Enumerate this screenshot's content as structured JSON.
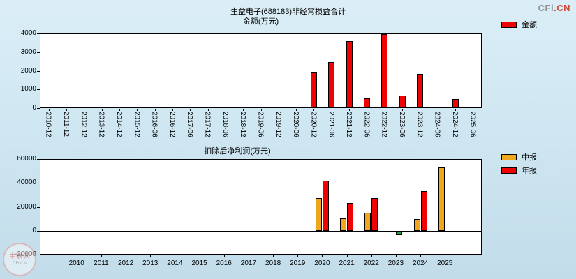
{
  "page": {
    "logo": {
      "gray": "CFi",
      "red": ".CN"
    },
    "watermark": {
      "cn": "中财网",
      "en": "CFi.CN"
    }
  },
  "chart_data": [
    {
      "type": "bar",
      "title": "生益电子(688183)非经常损益合计",
      "subtitle": "金额(万元)",
      "legend_position": "right-top",
      "grid": false,
      "ylim": [
        0,
        4000
      ],
      "yticks": [
        0,
        1000,
        2000,
        3000,
        4000
      ],
      "categories": [
        "2010-12",
        "2011-12",
        "2012-12",
        "2013-12",
        "2014-12",
        "2015-12",
        "2016-06",
        "2016-12",
        "2017-06",
        "2017-12",
        "2018-06",
        "2018-12",
        "2019-06",
        "2019-12",
        "2020-06",
        "2020-12",
        "2021-06",
        "2021-12",
        "2022-06",
        "2022-12",
        "2023-06",
        "2023-12",
        "2024-06",
        "2024-12",
        "2025-06"
      ],
      "series": [
        {
          "name": "金额",
          "color": "#ee0202",
          "values": [
            null,
            null,
            null,
            null,
            null,
            null,
            null,
            null,
            null,
            null,
            null,
            null,
            null,
            null,
            null,
            1950,
            2450,
            3600,
            520,
            3950,
            680,
            1850,
            null,
            500,
            null
          ]
        }
      ]
    },
    {
      "type": "bar",
      "title": "扣除后净利润(万元)",
      "legend_position": "right-top",
      "grid": false,
      "negative_color": "#1f9e45",
      "ylim": [
        -20000,
        60000
      ],
      "yticks": [
        -20000,
        0,
        20000,
        40000,
        60000
      ],
      "categories": [
        "2010",
        "2011",
        "2012",
        "2013",
        "2014",
        "2015",
        "2016",
        "2017",
        "2018",
        "2019",
        "2020",
        "2021",
        "2022",
        "2023",
        "2024",
        "2025"
      ],
      "series": [
        {
          "name": "中报",
          "color": "#efa81e",
          "values": [
            null,
            null,
            null,
            null,
            null,
            null,
            null,
            null,
            null,
            null,
            27500,
            10500,
            15000,
            -800,
            9500,
            53000
          ]
        },
        {
          "name": "年报",
          "color": "#ee0202",
          "values": [
            null,
            null,
            null,
            null,
            null,
            null,
            null,
            null,
            null,
            null,
            42000,
            23000,
            27500,
            -3800,
            33000,
            null
          ]
        }
      ]
    }
  ]
}
